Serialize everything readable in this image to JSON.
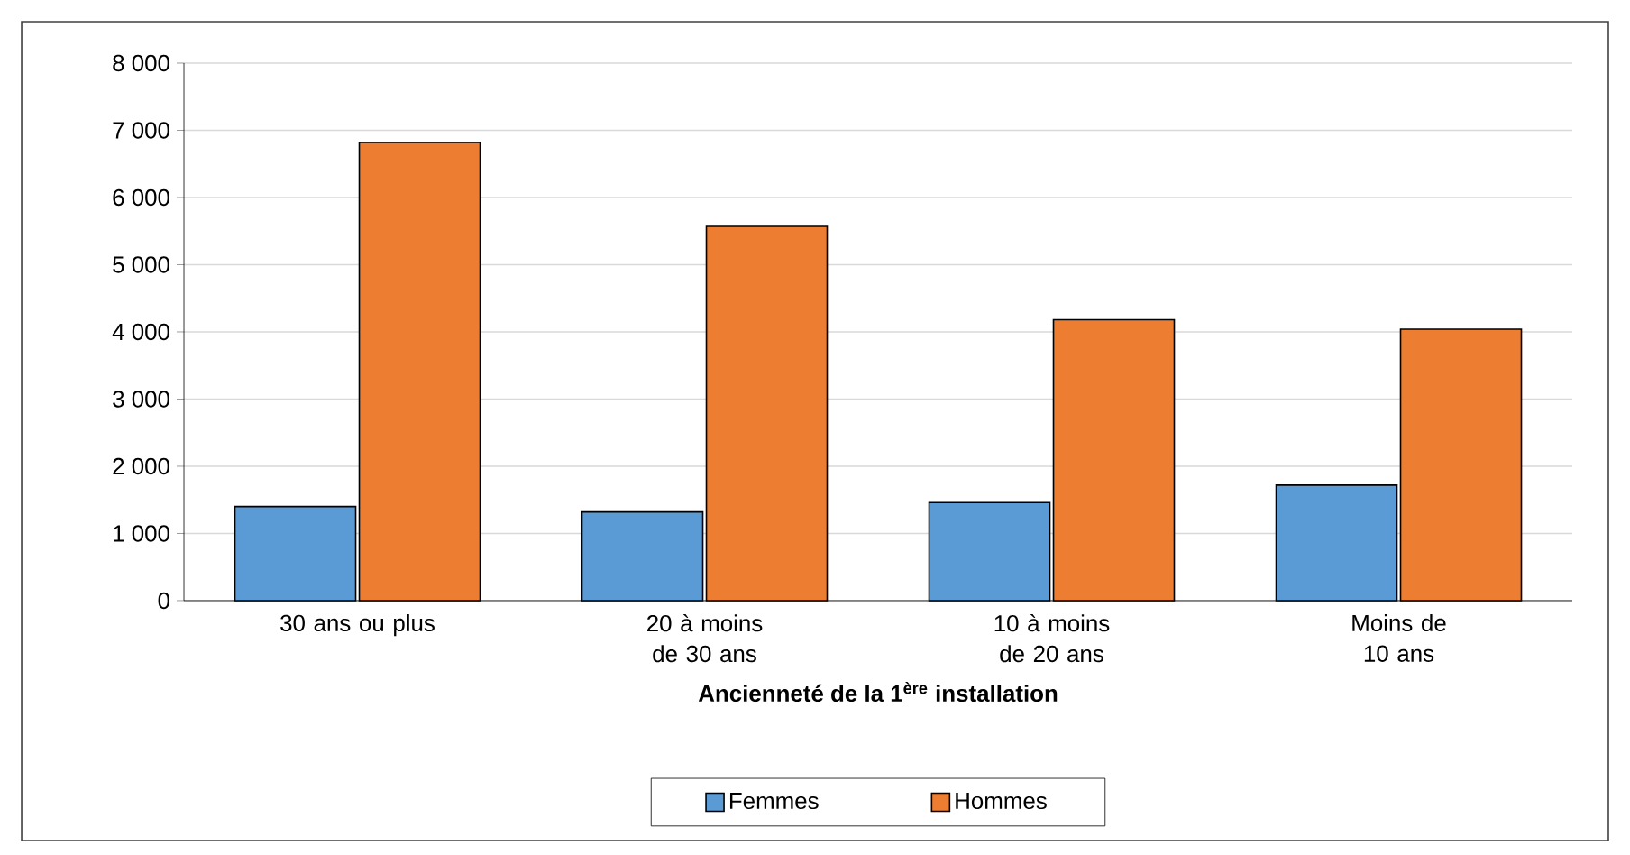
{
  "chart_data": {
    "type": "bar",
    "categories": [
      "30 ans ou plus",
      "20 à moins de 30 ans",
      "10 à moins de 20 ans",
      "Moins de 10 ans"
    ],
    "series": [
      {
        "name": "Femmes",
        "color": "#5b9bd5",
        "values": [
          1400,
          1320,
          1460,
          1720
        ]
      },
      {
        "name": "Hommes",
        "color": "#ed7d31",
        "values": [
          6820,
          5570,
          4180,
          4040
        ]
      }
    ],
    "xlabel": "Ancienneté de la 1$^{ère}$ installation",
    "ylim": [
      0,
      8000
    ],
    "yticks": [
      {
        "value": 0,
        "label": "0"
      },
      {
        "value": 1000,
        "label": "1 000"
      },
      {
        "value": 2000,
        "label": "2 000"
      },
      {
        "value": 3000,
        "label": "3 000"
      },
      {
        "value": 4000,
        "label": "4 000"
      },
      {
        "value": 5000,
        "label": "5 000"
      },
      {
        "value": 6000,
        "label": "6 000"
      },
      {
        "value": 7000,
        "label": "7 000"
      },
      {
        "value": 8000,
        "label": "8 000"
      }
    ],
    "grid": "y",
    "legend": "bottom"
  }
}
